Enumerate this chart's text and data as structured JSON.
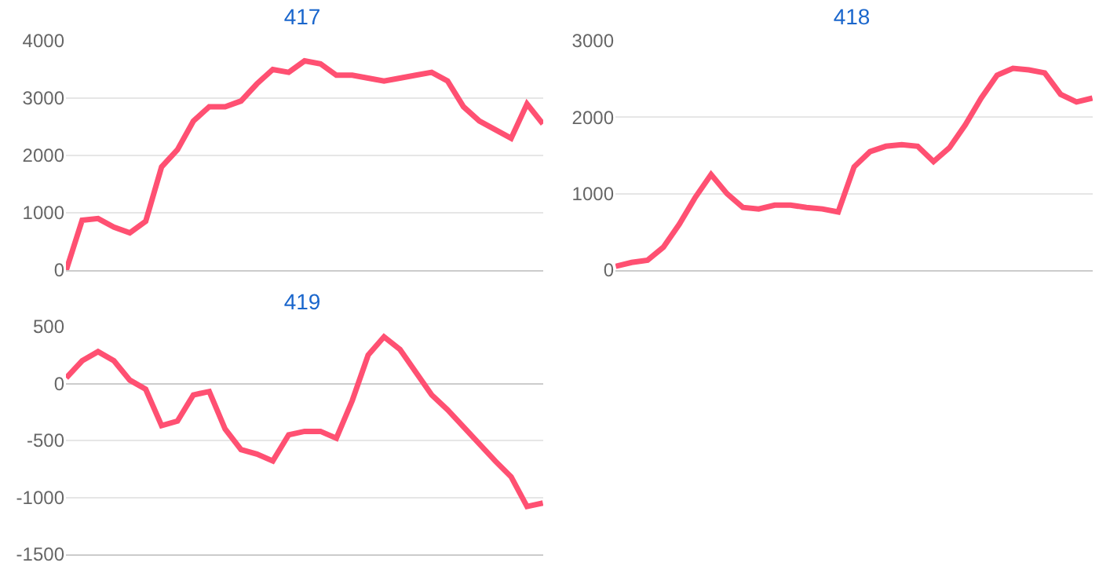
{
  "chart_data": [
    {
      "type": "line",
      "title": "417",
      "categories": [
        null,
        null,
        null,
        null,
        null,
        null,
        null,
        null,
        null,
        null,
        null,
        null,
        null,
        null,
        null,
        null,
        null,
        null,
        null,
        null,
        null,
        null,
        null,
        null,
        null,
        null,
        null,
        null,
        null,
        null,
        null
      ],
      "series": [
        {
          "color": "#ff5072",
          "values": [
            0,
            870,
            900,
            750,
            650,
            850,
            1800,
            2100,
            2600,
            2850,
            2850,
            2950,
            3250,
            3500,
            3450,
            3650,
            3600,
            3400,
            3400,
            3350,
            3300,
            3350,
            3400,
            3450,
            3300,
            2850,
            2600,
            2450,
            2300,
            2900,
            2550
          ]
        }
      ],
      "ylim": [
        0,
        4000
      ],
      "yticks": [
        0,
        1000,
        2000,
        3000,
        4000
      ],
      "grid": "y",
      "tick_labels": "y"
    },
    {
      "type": "line",
      "title": "418",
      "categories": [
        null,
        null,
        null,
        null,
        null,
        null,
        null,
        null,
        null,
        null,
        null,
        null,
        null,
        null,
        null,
        null,
        null,
        null,
        null,
        null,
        null,
        null,
        null,
        null,
        null,
        null,
        null,
        null,
        null,
        null,
        null
      ],
      "series": [
        {
          "color": "#ff5072",
          "values": [
            50,
            100,
            130,
            300,
            600,
            950,
            1250,
            1000,
            820,
            800,
            850,
            850,
            820,
            800,
            760,
            1350,
            1550,
            1620,
            1640,
            1620,
            1420,
            1600,
            1900,
            2250,
            2550,
            2640,
            2620,
            2580,
            2300,
            2200,
            2250
          ]
        }
      ],
      "ylim": [
        0,
        3000
      ],
      "yticks": [
        0,
        1000,
        2000,
        3000
      ],
      "grid": "y",
      "tick_labels": "y"
    },
    {
      "type": "line",
      "title": "419",
      "categories": [
        null,
        null,
        null,
        null,
        null,
        null,
        null,
        null,
        null,
        null,
        null,
        null,
        null,
        null,
        null,
        null,
        null,
        null,
        null,
        null,
        null,
        null,
        null,
        null,
        null,
        null,
        null,
        null,
        null,
        null,
        null
      ],
      "series": [
        {
          "color": "#ff5072",
          "values": [
            50,
            200,
            280,
            200,
            30,
            -50,
            -370,
            -330,
            -100,
            -70,
            -400,
            -580,
            -620,
            -680,
            -450,
            -420,
            -420,
            -480,
            -150,
            250,
            410,
            300,
            100,
            -100,
            -230,
            -380,
            -530,
            -680,
            -820,
            -1080,
            -1050
          ]
        }
      ],
      "ylim": [
        -1500,
        500
      ],
      "yticks": [
        -1500,
        -1000,
        -500,
        0,
        500
      ],
      "grid": "y",
      "tick_labels": "y"
    }
  ]
}
